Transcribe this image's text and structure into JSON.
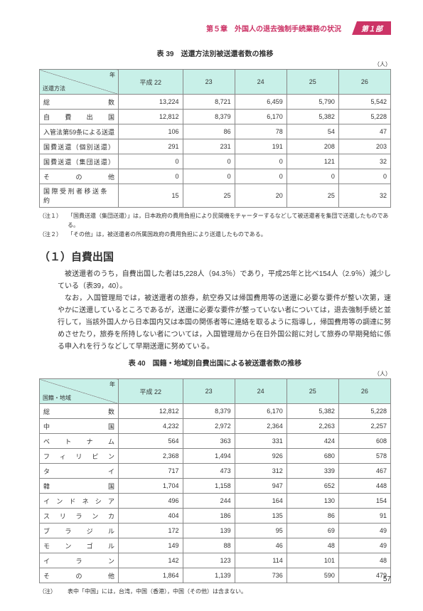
{
  "header": {
    "chapter": "第５章　外国人の退去強制手続業務の状況",
    "part": "第１部"
  },
  "table39": {
    "caption": "表 39　送還方法別被送還者数の推移",
    "unit": "（人）",
    "diag_tr": "年",
    "diag_bl": "送還方法",
    "year_headers": [
      "平成 22",
      "23",
      "24",
      "25",
      "26"
    ],
    "rows": [
      {
        "label": "総　　　　数",
        "values": [
          "13,224",
          "8,721",
          "6,459",
          "5,790",
          "5,542"
        ]
      },
      {
        "label": "自　費　出　国",
        "values": [
          "12,812",
          "8,379",
          "6,170",
          "5,382",
          "5,228"
        ]
      },
      {
        "label": "入管法第59条による送還",
        "values": [
          "106",
          "86",
          "78",
          "54",
          "47"
        ]
      },
      {
        "label": "国費送還（個別送還）",
        "values": [
          "291",
          "231",
          "191",
          "208",
          "203"
        ]
      },
      {
        "label": "国費送還（集団送還）",
        "values": [
          "0",
          "0",
          "0",
          "121",
          "32"
        ]
      },
      {
        "label": "そ　の　他",
        "values": [
          "0",
          "0",
          "0",
          "0",
          "0"
        ]
      },
      {
        "label": "国 際 受 刑 者 移 送 条 約",
        "values": [
          "15",
          "25",
          "20",
          "25",
          "32"
        ]
      }
    ],
    "notes": [
      {
        "lbl": "（注１）",
        "text": "「国費送還（集団送還）」は，日本政府の費用負担により民間機をチャーターするなどして被送還者を集団で送還したものである。"
      },
      {
        "lbl": "（注２）",
        "text": "「その他」は，被送還者の所属国政府の費用負担により送還したものである。"
      }
    ]
  },
  "section": {
    "title": "（１）自費出国",
    "paragraphs": [
      "被送還者のうち，自費出国した者は5,228人（94.3％）であり，平成25年と比べ154人（2.9％）減少している（表39，40）。",
      "なお，入国管理局では，被送還者の旅券，航空券又は帰国費用等の送還に必要な要件が整い次第，速やかに送還しているところであるが，送還に必要な要件が整っていない者については，退去強制手続と並行して，当該外国人から日本国内又は本国の関係者等に連絡を取るように指導し，帰国費用等の調達に努めさせたり，旅券を所持しない者については，入国管理局から在日外国公館に対して旅券の早期発給に係る申入れを行うなどして早期送還に努めている。"
    ]
  },
  "table40": {
    "caption": "表 40　国籍・地域別自費出国による被送還者数の推移",
    "unit": "（人）",
    "diag_tr": "年",
    "diag_bl": "国籍・地域",
    "year_headers": [
      "平成 22",
      "23",
      "24",
      "25",
      "26"
    ],
    "rows": [
      {
        "label": "総　　　　数",
        "values": [
          "12,812",
          "8,379",
          "6,170",
          "5,382",
          "5,228"
        ]
      },
      {
        "label": "中　　　　国",
        "values": [
          "4,232",
          "2,972",
          "2,364",
          "2,263",
          "2,257"
        ]
      },
      {
        "label": "ベ　ト　ナ　ム",
        "values": [
          "564",
          "363",
          "331",
          "424",
          "608"
        ]
      },
      {
        "label": "フ ィ リ ピ ン",
        "values": [
          "2,368",
          "1,494",
          "926",
          "680",
          "578"
        ]
      },
      {
        "label": "タ　　　　イ",
        "values": [
          "717",
          "473",
          "312",
          "339",
          "467"
        ]
      },
      {
        "label": "韓　　　　国",
        "values": [
          "1,704",
          "1,158",
          "947",
          "652",
          "448"
        ]
      },
      {
        "label": "イ ン ド ネ シ ア",
        "values": [
          "496",
          "244",
          "164",
          "130",
          "154"
        ]
      },
      {
        "label": "ス リ ラ ン カ",
        "values": [
          "404",
          "186",
          "135",
          "86",
          "91"
        ]
      },
      {
        "label": "ブ ラ ジ ル",
        "values": [
          "172",
          "139",
          "95",
          "69",
          "49"
        ]
      },
      {
        "label": "モ ン ゴ ル",
        "values": [
          "149",
          "88",
          "46",
          "48",
          "49"
        ]
      },
      {
        "label": "イ　ラ　ン",
        "values": [
          "142",
          "123",
          "114",
          "101",
          "48"
        ]
      },
      {
        "label": "そ　の　他",
        "values": [
          "1,864",
          "1,139",
          "736",
          "590",
          "479"
        ]
      }
    ],
    "note": {
      "lbl": "（注）",
      "text": "表中「中国」には，台湾，中国（香港），中国（その他）は含まない。"
    }
  },
  "pagenum": "57"
}
